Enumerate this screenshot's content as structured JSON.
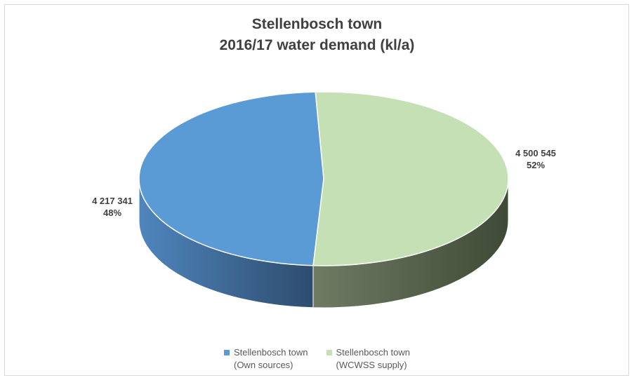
{
  "chart_data": {
    "type": "pie",
    "title_lines": [
      "Stellenbosch town",
      "2016/17 water demand (kl/a)"
    ],
    "slices": [
      {
        "legend_lines": [
          "Stellenbosch town",
          "(Own sources)"
        ],
        "value": 4217341,
        "value_label": "4 217 341",
        "percent_label": "48%",
        "color": "#5b9bd5",
        "side_dark": "#2e4c6e",
        "side_light": "#4f86bd"
      },
      {
        "legend_lines": [
          "Stellenbosch town",
          "(WCWSS supply)"
        ],
        "value": 4500545,
        "value_label": "4 500 545",
        "percent_label": "52%",
        "color": "#c5e0b4",
        "side_dark": "#3f4a36",
        "side_light": "#6f7b63"
      }
    ],
    "legend_position": "bottom",
    "style": "3d-pie"
  }
}
